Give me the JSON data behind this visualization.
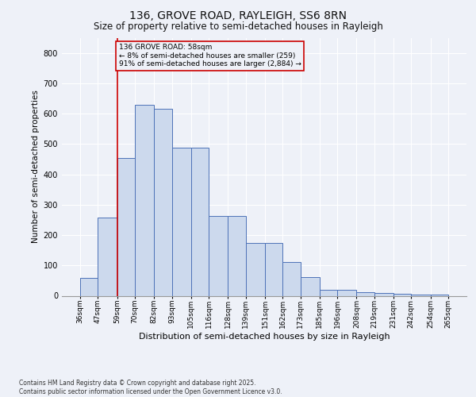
{
  "title": "136, GROVE ROAD, RAYLEIGH, SS6 8RN",
  "subtitle": "Size of property relative to semi-detached houses in Rayleigh",
  "xlabel": "Distribution of semi-detached houses by size in Rayleigh",
  "ylabel": "Number of semi-detached properties",
  "footnote1": "Contains HM Land Registry data © Crown copyright and database right 2025.",
  "footnote2": "Contains public sector information licensed under the Open Government Licence v3.0.",
  "annotation_title": "136 GROVE ROAD: 58sqm",
  "annotation_line1": "← 8% of semi-detached houses are smaller (259)",
  "annotation_line2": "91% of semi-detached houses are larger (2,884) →",
  "bin_edges": [
    36,
    47,
    59,
    70,
    82,
    93,
    105,
    116,
    128,
    139,
    151,
    162,
    173,
    185,
    196,
    208,
    219,
    231,
    242,
    254,
    265
  ],
  "bar_heights": [
    58,
    258,
    455,
    630,
    615,
    488,
    488,
    263,
    263,
    175,
    175,
    110,
    62,
    20,
    20,
    12,
    8,
    6,
    5,
    5
  ],
  "bar_labels": [
    "36sqm",
    "47sqm",
    "59sqm",
    "70sqm",
    "82sqm",
    "93sqm",
    "105sqm",
    "116sqm",
    "128sqm",
    "139sqm",
    "151sqm",
    "162sqm",
    "173sqm",
    "185sqm",
    "196sqm",
    "208sqm",
    "219sqm",
    "231sqm",
    "242sqm",
    "254sqm",
    "265sqm"
  ],
  "bar_color": "#ccd9ed",
  "bar_edge_color": "#4d72b8",
  "vline_color": "#cc0000",
  "annotation_box_color": "#cc0000",
  "background_color": "#eef1f8",
  "grid_color": "#ffffff",
  "ylim": [
    0,
    850
  ],
  "yticks": [
    0,
    100,
    200,
    300,
    400,
    500,
    600,
    700,
    800
  ],
  "title_fontsize": 10,
  "subtitle_fontsize": 8.5,
  "ylabel_fontsize": 7.5,
  "xlabel_fontsize": 8,
  "tick_fontsize": 6.5,
  "footnote_fontsize": 5.5,
  "annot_fontsize": 6.5
}
